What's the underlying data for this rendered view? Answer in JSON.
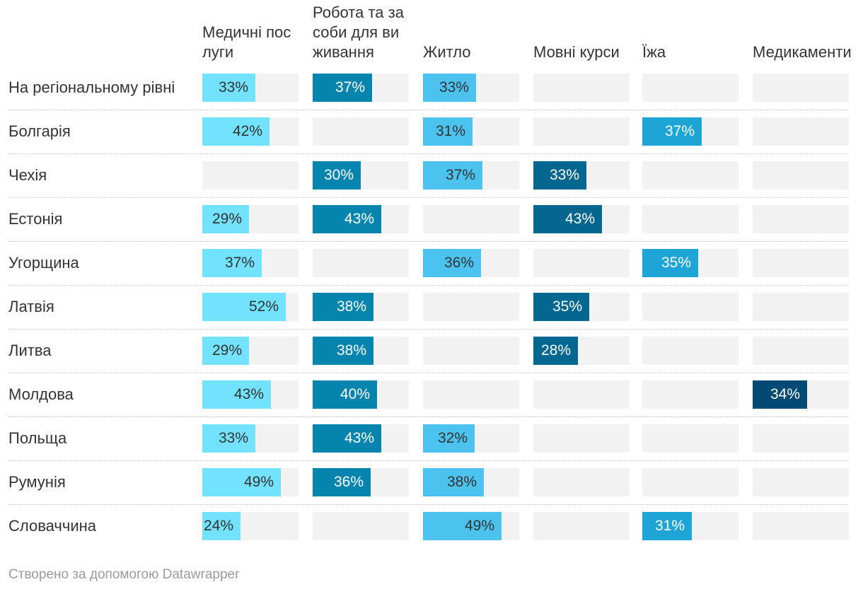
{
  "chart_data": {
    "type": "table",
    "value_suffix": "%",
    "columns": [
      {
        "name": "Медичні послуги",
        "color": "#73e2ff",
        "text_color": "#333333"
      },
      {
        "name": "Робота та засоби для виживання",
        "color": "#0585ad",
        "text_color": "#ffffff"
      },
      {
        "name": "Житло",
        "color": "#4cc3ee",
        "text_color": "#333333"
      },
      {
        "name": "Мовні курси",
        "color": "#03678f",
        "text_color": "#ffffff"
      },
      {
        "name": "Їжа",
        "color": "#1fa4d6",
        "text_color": "#ffffff"
      },
      {
        "name": "Медикаменти",
        "color": "#004a73",
        "text_color": "#ffffff"
      }
    ],
    "max_value": 60,
    "rows": [
      {
        "label": "На регіональному рівні",
        "values": [
          33,
          37,
          33,
          null,
          null,
          null
        ]
      },
      {
        "label": "Болгарія",
        "values": [
          42,
          null,
          31,
          null,
          37,
          null
        ]
      },
      {
        "label": "Чехія",
        "values": [
          null,
          30,
          37,
          33,
          null,
          null
        ]
      },
      {
        "label": "Естонія",
        "values": [
          29,
          43,
          null,
          43,
          null,
          null
        ]
      },
      {
        "label": "Угорщина",
        "values": [
          37,
          null,
          36,
          null,
          35,
          null
        ]
      },
      {
        "label": "Латвія",
        "values": [
          52,
          38,
          null,
          35,
          null,
          null
        ]
      },
      {
        "label": "Литва",
        "values": [
          29,
          38,
          null,
          28,
          null,
          null
        ]
      },
      {
        "label": "Молдова",
        "values": [
          43,
          40,
          null,
          null,
          null,
          34
        ]
      },
      {
        "label": "Польща",
        "values": [
          33,
          43,
          32,
          null,
          null,
          null
        ]
      },
      {
        "label": "Румунія",
        "values": [
          49,
          36,
          38,
          null,
          null,
          null
        ]
      },
      {
        "label": "Словаччина",
        "values": [
          24,
          null,
          49,
          null,
          31,
          null
        ]
      }
    ]
  },
  "footer": "Створено за допомогою Datawrapper"
}
